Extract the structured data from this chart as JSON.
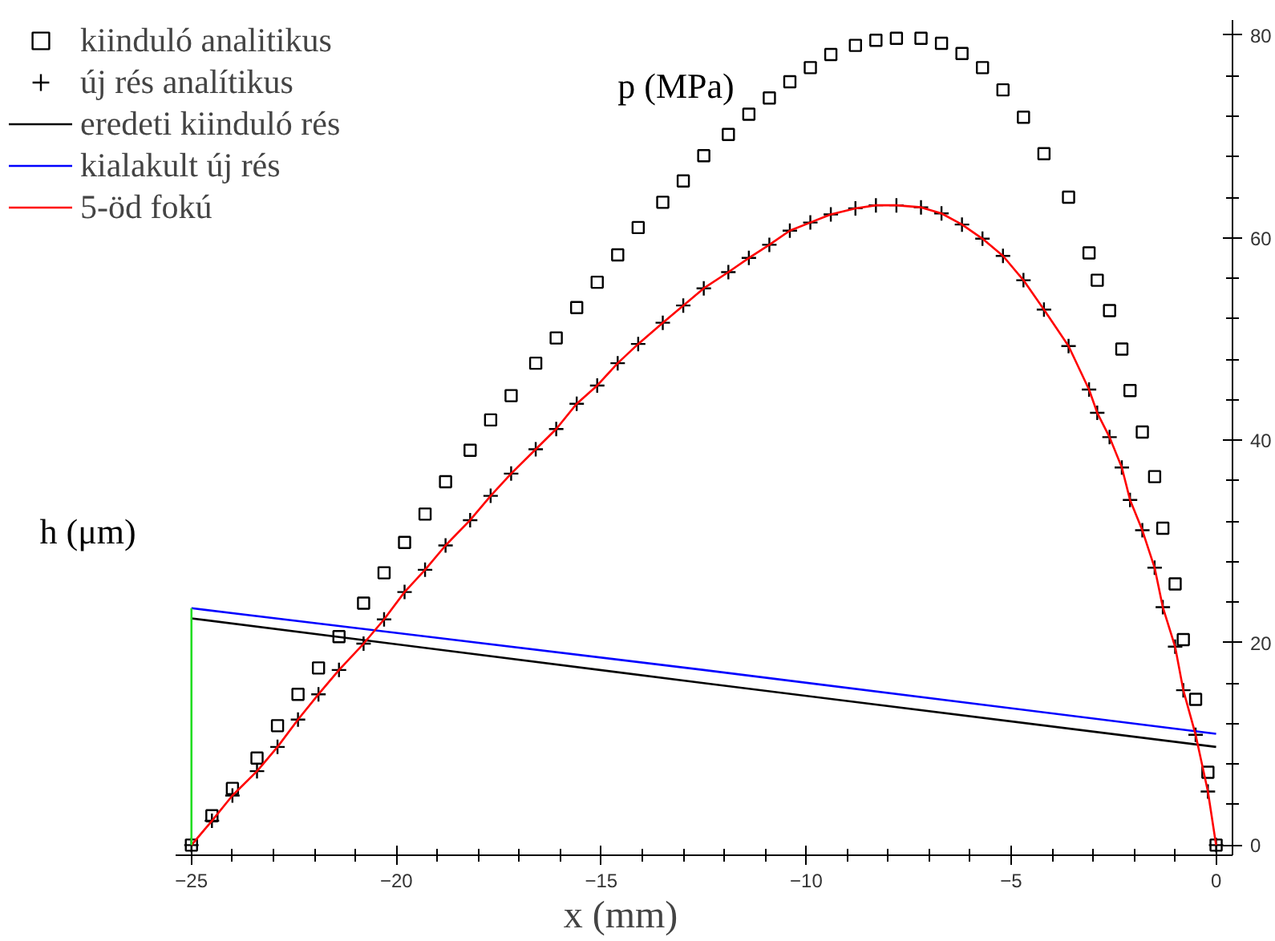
{
  "chart_data": {
    "type": "scatter",
    "xlabel": "x (mm)",
    "ylabel": "p (MPa)",
    "annotations": [
      "h (μm)"
    ],
    "x": [
      -25,
      -24.5,
      -24,
      -23.4,
      -22.9,
      -22.4,
      -21.9,
      -21.4,
      -20.8,
      -20.3,
      -19.8,
      -19.3,
      -18.8,
      -18.2,
      -17.7,
      -17.2,
      -16.6,
      -16.1,
      -15.6,
      -15.1,
      -14.6,
      -14.1,
      -13.5,
      -13,
      -12.5,
      -11.9,
      -11.4,
      -10.9,
      -10.4,
      -9.9,
      -9.4,
      -8.8,
      -8.3,
      -7.8,
      -7.2,
      -6.7,
      -6.2,
      -5.7,
      -5.2,
      -4.7,
      -4.2,
      -3.6,
      -3.1,
      -2.9,
      -2.6,
      -2.3,
      -2.1,
      -1.8,
      -1.5,
      -1.3,
      -1,
      -0.8,
      -0.5,
      -0.2,
      0
    ],
    "series": [
      {
        "name": "kiinduló analitikus",
        "type": "scatter",
        "marker": "square",
        "color": "#000000",
        "values": [
          0,
          2.9,
          5.6,
          8.6,
          11.8,
          14.9,
          17.5,
          20.6,
          23.9,
          26.9,
          29.9,
          32.7,
          35.9,
          39.0,
          42.0,
          44.4,
          47.6,
          50.1,
          53.1,
          55.6,
          58.3,
          61.0,
          63.5,
          65.6,
          68.1,
          70.2,
          72.2,
          73.8,
          75.4,
          76.8,
          78.1,
          79.0,
          79.5,
          79.7,
          79.7,
          79.2,
          78.2,
          76.8,
          74.6,
          71.9,
          68.3,
          64.0,
          58.5,
          55.8,
          52.8,
          49.0,
          44.9,
          40.8,
          36.4,
          31.3,
          25.8,
          20.3,
          14.4,
          7.2,
          0
        ]
      },
      {
        "name": "új rés analítikus",
        "type": "scatter",
        "marker": "cross",
        "color": "#000000",
        "values": [
          0,
          2.4,
          4.9,
          7.3,
          9.7,
          12.4,
          14.9,
          17.3,
          19.9,
          22.3,
          25.0,
          27.2,
          29.6,
          32.1,
          34.5,
          36.7,
          39.1,
          41.1,
          43.6,
          45.4,
          47.6,
          49.5,
          51.6,
          53.3,
          55.0,
          56.6,
          58.0,
          59.3,
          60.7,
          61.5,
          62.3,
          62.9,
          63.2,
          63.2,
          63.0,
          62.4,
          61.3,
          59.9,
          58.2,
          55.8,
          52.9,
          49.3,
          45.0,
          42.7,
          40.3,
          37.3,
          34.1,
          31.1,
          27.4,
          23.5,
          19.6,
          15.3,
          10.9,
          5.3,
          0
        ]
      },
      {
        "name": "eredeti kiinduló rés",
        "type": "line",
        "color": "#000000",
        "x": [
          -25,
          -12.5,
          0
        ],
        "values": [
          22.4,
          16.0,
          9.7
        ]
      },
      {
        "name": "kialakult új rés",
        "type": "line",
        "color": "#0000ff",
        "x": [
          -25,
          -12.5,
          0
        ],
        "values": [
          23.4,
          17.3,
          11.0
        ]
      },
      {
        "name": "5-öd fokú",
        "type": "line",
        "color": "#ff0000",
        "values": [
          0,
          2.4,
          4.9,
          7.3,
          9.7,
          12.4,
          14.9,
          17.3,
          19.9,
          22.3,
          25.0,
          27.2,
          29.6,
          32.1,
          34.5,
          36.7,
          39.1,
          41.1,
          43.6,
          45.4,
          47.6,
          49.5,
          51.6,
          53.3,
          55.0,
          56.6,
          58.0,
          59.3,
          60.7,
          61.5,
          62.3,
          62.9,
          63.2,
          63.2,
          63.0,
          62.4,
          61.3,
          59.9,
          58.2,
          55.8,
          52.9,
          49.3,
          45.0,
          42.7,
          40.3,
          37.3,
          34.1,
          31.1,
          27.4,
          23.5,
          19.6,
          15.3,
          10.9,
          5.3,
          0
        ]
      },
      {
        "type": "line",
        "color": "#22dd22",
        "x": [
          -25,
          -25
        ],
        "values": [
          0,
          23.4
        ]
      }
    ],
    "xlim": [
      -25.4,
      0.4
    ],
    "ylim": [
      -1,
      81.5
    ],
    "xticks": [
      -25,
      -20,
      -15,
      -10,
      -5,
      0
    ],
    "yticks": [
      0,
      20,
      40,
      60,
      80
    ],
    "legend": "top left",
    "line_style": "solid"
  }
}
